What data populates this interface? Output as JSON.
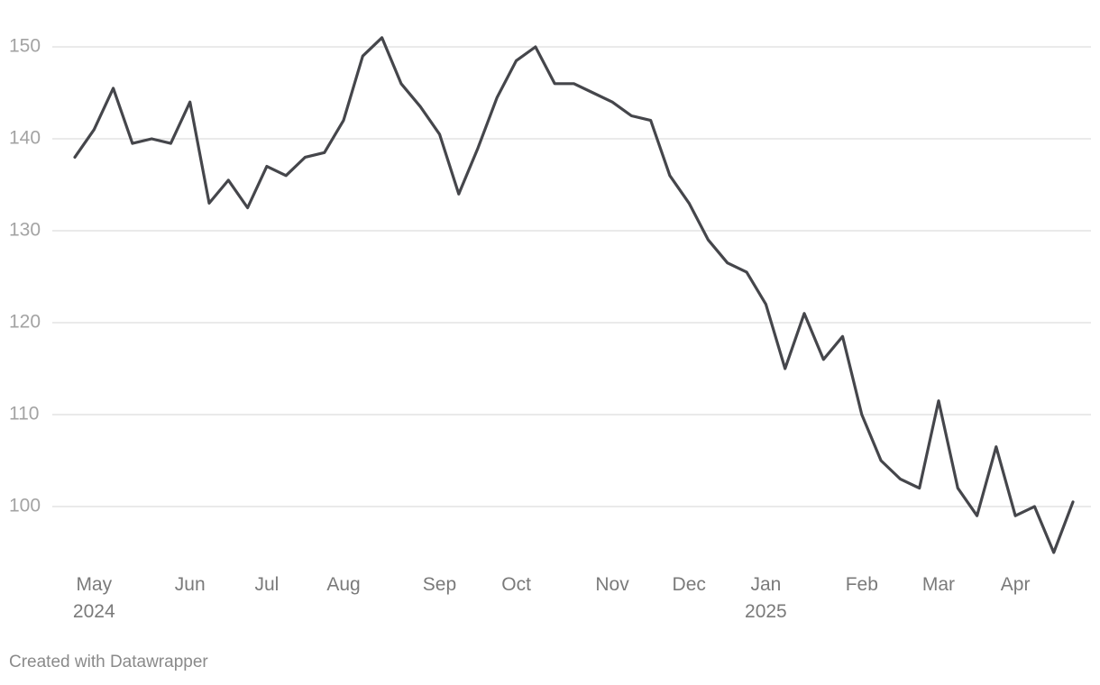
{
  "chart_data": {
    "type": "line",
    "categories": [
      null,
      "May\n2024",
      null,
      null,
      null,
      null,
      "Jun",
      null,
      null,
      null,
      "Jul",
      null,
      null,
      null,
      "Aug",
      null,
      null,
      null,
      null,
      "Sep",
      null,
      null,
      null,
      "Oct",
      null,
      null,
      null,
      null,
      "Nov",
      null,
      null,
      null,
      "Dec",
      null,
      null,
      null,
      "Jan\n2025",
      null,
      null,
      null,
      null,
      "Feb",
      null,
      null,
      null,
      "Mar",
      null,
      null,
      null,
      "Apr",
      null,
      null,
      null
    ],
    "values": [
      138,
      141,
      145.5,
      139.5,
      140,
      139.5,
      144,
      133,
      135.5,
      132.5,
      137,
      136,
      138,
      138.5,
      142,
      149,
      151,
      146,
      143.5,
      140.5,
      134,
      139,
      144.5,
      148.5,
      150,
      146,
      146,
      145,
      144,
      142.5,
      142,
      136,
      133,
      129,
      126.5,
      125.5,
      122,
      115,
      121,
      116,
      118.5,
      110,
      105,
      103,
      102,
      111.5,
      102,
      99,
      106.5,
      99,
      100,
      95,
      100.5
    ],
    "color": "#45464b",
    "ylim": [
      93.5,
      153.5
    ],
    "yticks": [
      100,
      110,
      120,
      130,
      140,
      150
    ],
    "grid": true,
    "footer": "Created with Datawrapper"
  }
}
